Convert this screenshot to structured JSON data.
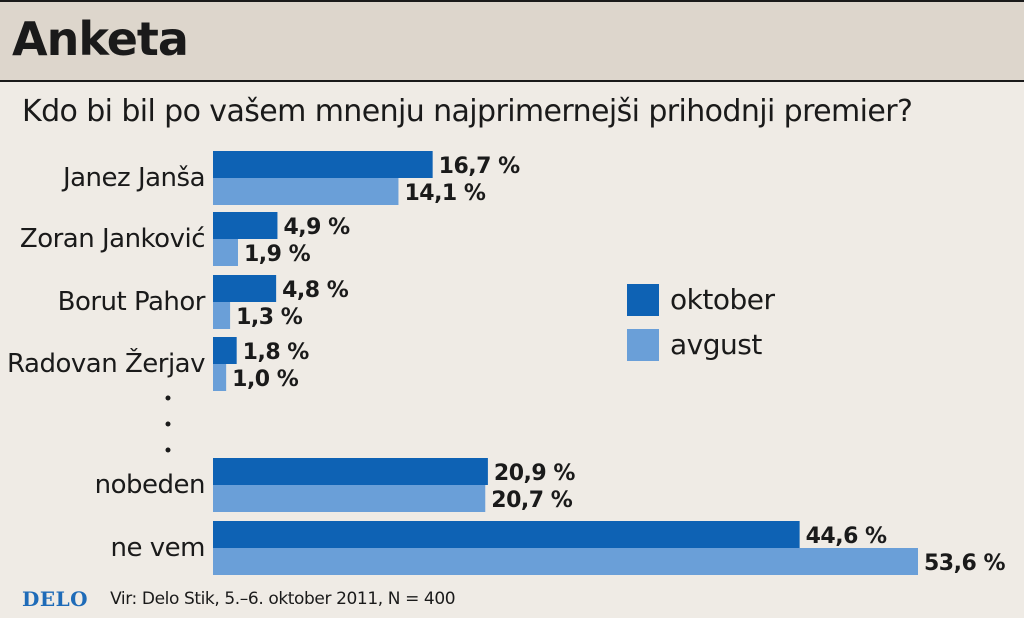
{
  "header": {
    "title": "Anketa"
  },
  "chart_data": {
    "type": "bar",
    "orientation": "horizontal",
    "title": "Kdo bi bil po vašem mnenju najprimernejši prihodnji premier?",
    "categories": [
      "Janez Janša",
      "Zoran Janković",
      "Borut Pahor",
      "Radovan Žerjav",
      "nobeden",
      "ne vem"
    ],
    "series": [
      {
        "name": "oktober",
        "color": "#0e62b4",
        "values": [
          16.7,
          4.9,
          4.8,
          1.8,
          20.9,
          44.6
        ],
        "labels": [
          "16,7 %",
          "4,9 %",
          "4,8 %",
          "1,8 %",
          "20,9 %",
          "44,6 %"
        ]
      },
      {
        "name": "avgust",
        "color": "#6a9fd8",
        "values": [
          14.1,
          1.9,
          1.3,
          1.0,
          20.7,
          53.6
        ],
        "labels": [
          "14,1 %",
          "1,9 %",
          "1,3 %",
          "1,0 %",
          "20,7 %",
          "53,6 %"
        ]
      }
    ],
    "gap_marker": "⋮",
    "legend_position": "right",
    "grid": false
  },
  "footer": {
    "brand": "DELO",
    "source": "Vir: Delo Stik, 5.–6. oktober 2011, N = 400"
  }
}
